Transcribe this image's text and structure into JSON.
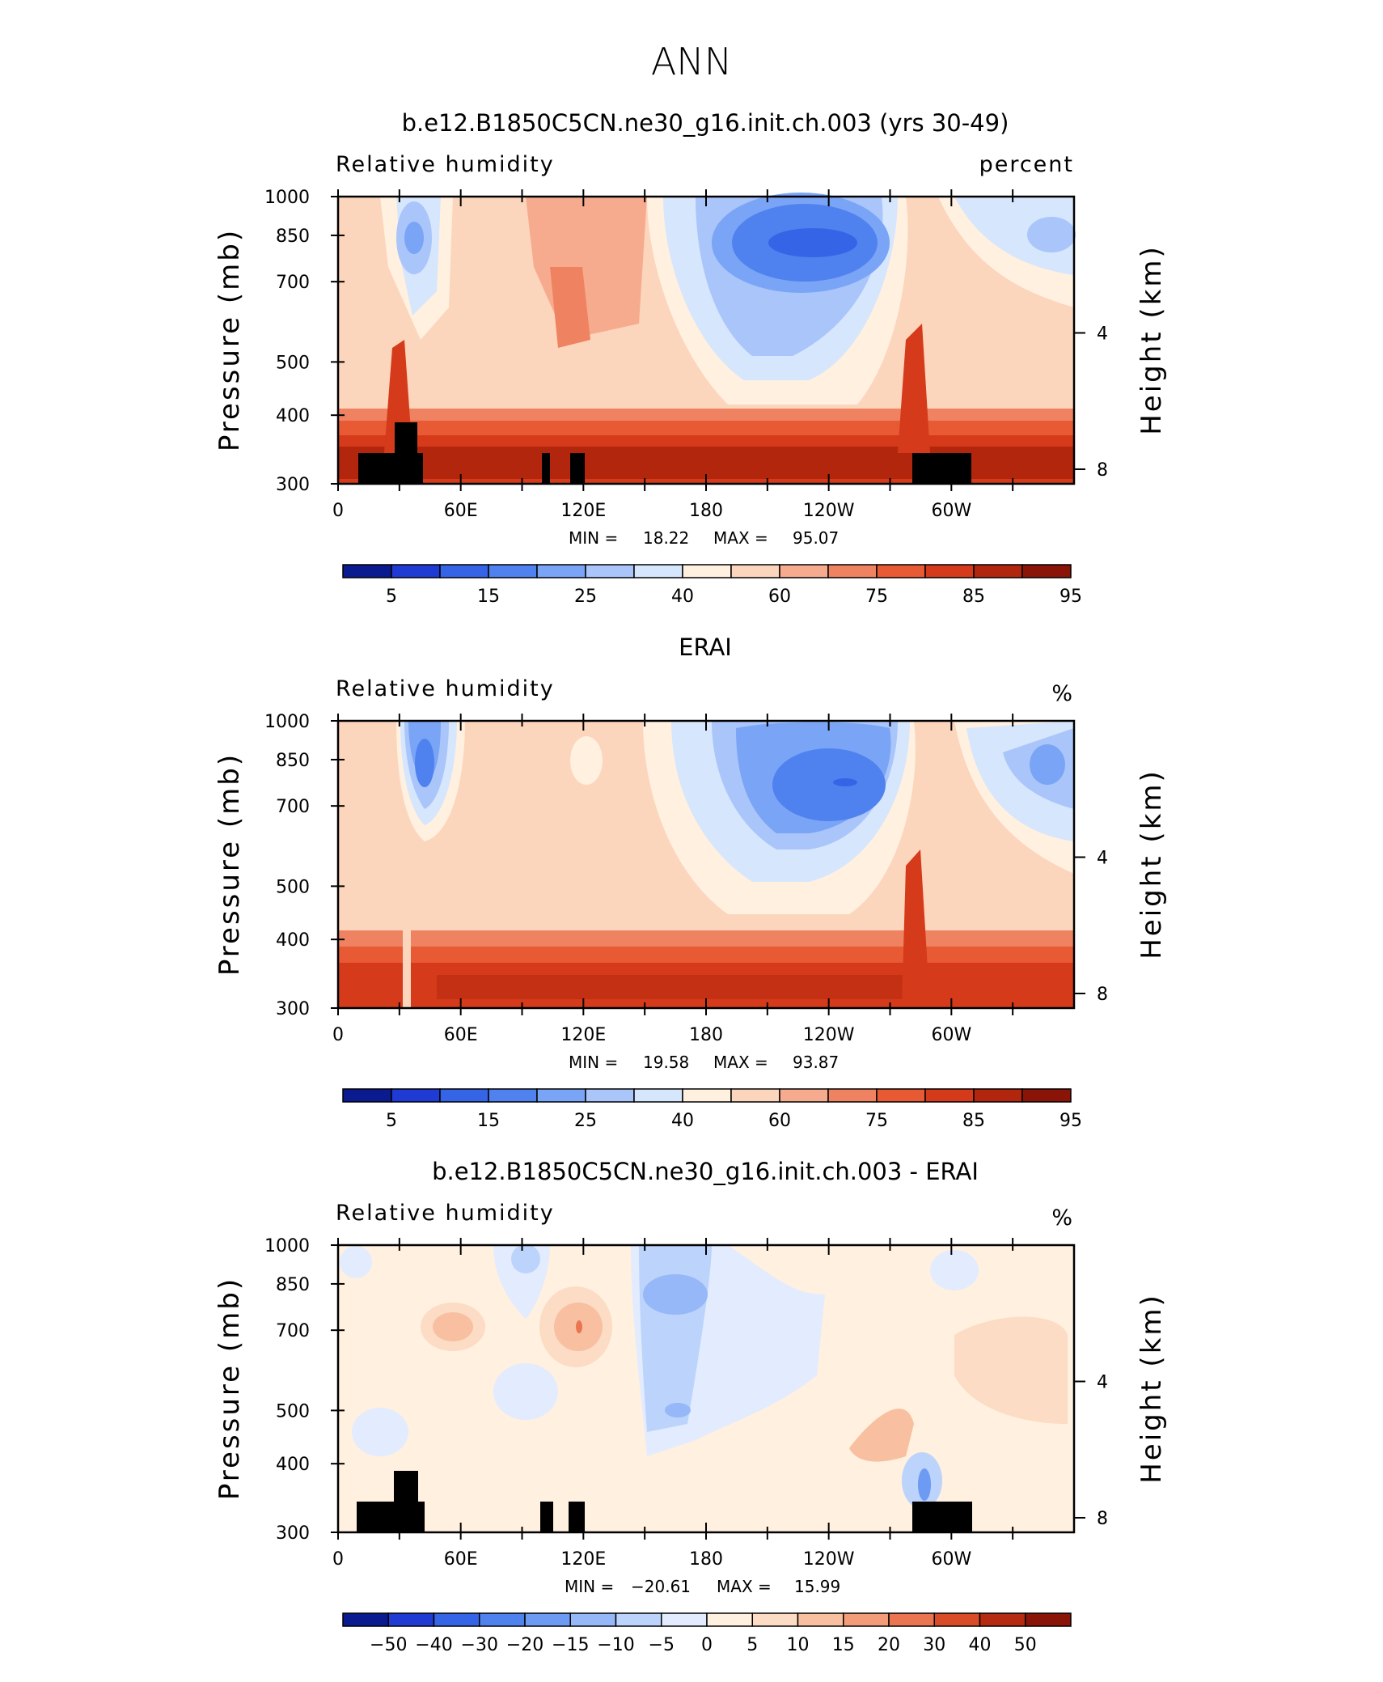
{
  "main_title": "ANN",
  "colors": {
    "rh_scale": [
      "#0a1b8f",
      "#1f3bd4",
      "#3565e6",
      "#4f82ef",
      "#7aa4f5",
      "#a9c5fa",
      "#d6e6fd",
      "#fff0e0",
      "#fcd5bd",
      "#f6ab8e",
      "#ef8260",
      "#e85a33",
      "#d53b1a",
      "#b3260e",
      "#8a1408"
    ],
    "diff_scale": [
      "#0a1b8f",
      "#1f3bd4",
      "#3565e6",
      "#4f82ef",
      "#6d9af3",
      "#96b8f8",
      "#bcd3fb",
      "#e2ecfe",
      "#fff0e0",
      "#fcdcc4",
      "#f8bfa1",
      "#f29c7a",
      "#ea7550",
      "#d84d28",
      "#b52a10",
      "#8a1408"
    ],
    "topography": "#000000"
  },
  "chart_data": [
    {
      "type": "heatmap",
      "title": "b.e12.B1850C5CN.ne30_g16.init.ch.003 (yrs 30-49)",
      "left_label": "Relative humidity",
      "right_label": "percent",
      "ylabel": "Pressure (mb)",
      "ylabel_right": "Height (km)",
      "x_ticks": [
        "0",
        "60E",
        "120E",
        "180",
        "120W",
        "60W"
      ],
      "y_ticks": [
        "300",
        "400",
        "500",
        "700",
        "850",
        "1000"
      ],
      "y_ticks_right": [
        "8",
        "4"
      ],
      "ylim": [
        1000,
        300
      ],
      "min_label": "MIN =",
      "min_value": "18.22",
      "max_label": "MAX =",
      "max_value": "95.07",
      "colorbar_labels": [
        "5",
        "15",
        "25",
        "40",
        "60",
        "75",
        "85",
        "95"
      ],
      "topography": true
    },
    {
      "type": "heatmap",
      "title": "ERAI",
      "left_label": "Relative humidity",
      "right_label": "%",
      "ylabel": "Pressure (mb)",
      "ylabel_right": "Height (km)",
      "x_ticks": [
        "0",
        "60E",
        "120E",
        "180",
        "120W",
        "60W"
      ],
      "y_ticks": [
        "300",
        "400",
        "500",
        "700",
        "850",
        "1000"
      ],
      "y_ticks_right": [
        "8",
        "4"
      ],
      "ylim": [
        1000,
        300
      ],
      "min_label": "MIN =",
      "min_value": "19.58",
      "max_label": "MAX =",
      "max_value": "93.87",
      "colorbar_labels": [
        "5",
        "15",
        "25",
        "40",
        "60",
        "75",
        "85",
        "95"
      ],
      "topography": false
    },
    {
      "type": "heatmap",
      "title": "b.e12.B1850C5CN.ne30_g16.init.ch.003 - ERAI",
      "left_label": "Relative humidity",
      "right_label": "%",
      "ylabel": "Pressure (mb)",
      "ylabel_right": "Height (km)",
      "x_ticks": [
        "0",
        "60E",
        "120E",
        "180",
        "120W",
        "60W"
      ],
      "y_ticks": [
        "300",
        "400",
        "500",
        "700",
        "850",
        "1000"
      ],
      "y_ticks_right": [
        "8",
        "4"
      ],
      "ylim": [
        1000,
        300
      ],
      "min_label": "MIN =",
      "min_value": "−20.61",
      "max_label": "MAX =",
      "max_value": "15.99",
      "colorbar_labels": [
        "−50",
        "−40",
        "−30",
        "−20",
        "−15",
        "−10",
        "−5",
        "0",
        "5",
        "10",
        "15",
        "20",
        "30",
        "40",
        "50"
      ],
      "topography": true
    }
  ]
}
